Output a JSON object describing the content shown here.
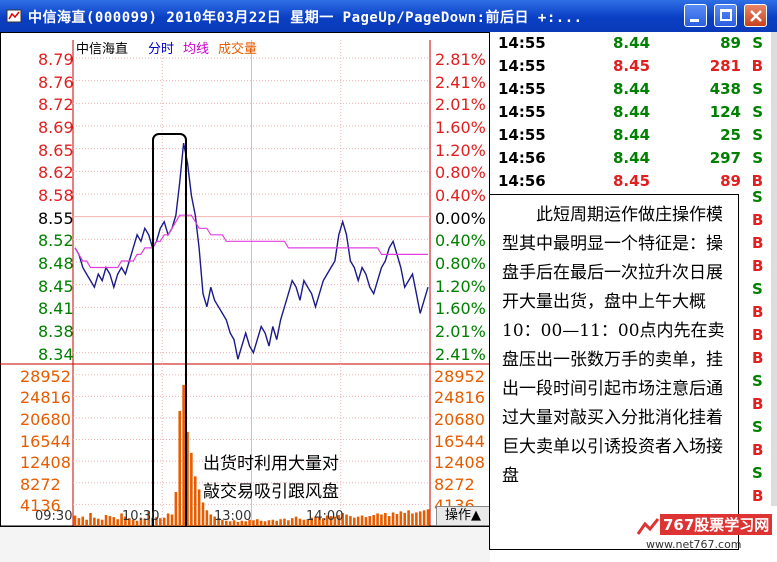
{
  "window": {
    "title": "中信海直(000099) 2010年03月22日 星期一 PageUp/PageDown:前后日 +:...",
    "minimize": "–",
    "maximize": "□",
    "close": "✕"
  },
  "legend": {
    "stock": "中信海直",
    "tab_minute": "分时",
    "tab_avg": "均线",
    "tab_volume": "成交量"
  },
  "colors": {
    "up": "#e02020",
    "down": "#008000",
    "price_line": "#1a1a8a",
    "avg_line": "#e040e0",
    "volume": "#e65c00"
  },
  "axes": {
    "price_ticks": [
      "8.79",
      "8.76",
      "8.72",
      "8.69",
      "8.65",
      "8.62",
      "8.58",
      "8.55",
      "8.52",
      "8.48",
      "8.45",
      "8.41",
      "8.38",
      "8.34"
    ],
    "pct_ticks": [
      "2.81%",
      "2.41%",
      "2.01%",
      "1.60%",
      "1.20%",
      "0.80%",
      "0.40%",
      "0.00%",
      "0.40%",
      "0.80%",
      "1.20%",
      "1.60%",
      "2.01%",
      "2.41%"
    ],
    "volume_ticks": [
      "28952",
      "24816",
      "20680",
      "16544",
      "12408",
      "8272",
      "4136"
    ],
    "time_ticks": [
      "09:30",
      "10:30",
      "13:00",
      "14:00"
    ]
  },
  "chart_data": {
    "type": "line",
    "title": "",
    "xlabel": "",
    "ylabel": "",
    "ylim": [
      8.34,
      8.79
    ],
    "series": [
      {
        "values": [
          8.5,
          8.49,
          8.47,
          8.46,
          8.45,
          8.44,
          8.46,
          8.45,
          8.47,
          8.46,
          8.44,
          8.46,
          8.47,
          8.46,
          8.48,
          8.5,
          8.52,
          8.51,
          8.53,
          8.52,
          8.5,
          8.51,
          8.53,
          8.54,
          8.52,
          8.53,
          8.55,
          8.6,
          8.66,
          8.63,
          8.58,
          8.55,
          8.5,
          8.43,
          8.41,
          8.44,
          8.42,
          8.41,
          8.4,
          8.39,
          8.37,
          8.36,
          8.33,
          8.35,
          8.37,
          8.35,
          8.34,
          8.36,
          8.38,
          8.37,
          8.35,
          8.38,
          8.36,
          8.39,
          8.41,
          8.43,
          8.45,
          8.44,
          8.42,
          8.45,
          8.44,
          8.43,
          8.41,
          8.43,
          8.45,
          8.46,
          8.47,
          8.48,
          8.52,
          8.54,
          8.52,
          8.48,
          8.47,
          8.45,
          8.47,
          8.46,
          8.44,
          8.43,
          8.45,
          8.47,
          8.48,
          8.5,
          8.51,
          8.49,
          8.47,
          8.44,
          8.45,
          8.46,
          8.43,
          8.4,
          8.42,
          8.44
        ]
      },
      {
        "values": [
          8.5,
          8.49,
          8.48,
          8.48,
          8.47,
          8.47,
          8.47,
          8.47,
          8.47,
          8.47,
          8.47,
          8.47,
          8.48,
          8.48,
          8.48,
          8.48,
          8.49,
          8.49,
          8.5,
          8.5,
          8.5,
          8.51,
          8.51,
          8.52,
          8.52,
          8.53,
          8.54,
          8.55,
          8.55,
          8.55,
          8.55,
          8.54,
          8.53,
          8.53,
          8.53,
          8.52,
          8.52,
          8.52,
          8.52,
          8.51,
          8.51,
          8.51,
          8.51,
          8.51,
          8.51,
          8.51,
          8.51,
          8.51,
          8.51,
          8.51,
          8.51,
          8.51,
          8.51,
          8.51,
          8.51,
          8.5,
          8.5,
          8.5,
          8.5,
          8.5,
          8.5,
          8.5,
          8.5,
          8.5,
          8.5,
          8.5,
          8.5,
          8.5,
          8.5,
          8.5,
          8.5,
          8.5,
          8.5,
          8.5,
          8.5,
          8.5,
          8.5,
          8.5,
          8.5,
          8.49,
          8.49,
          8.49,
          8.49,
          8.49,
          8.49,
          8.49,
          8.49,
          8.49,
          8.49,
          8.49,
          8.49,
          8.49
        ]
      }
    ],
    "volume_values": [
      2000,
      1500,
      1800,
      1200,
      2500,
      1600,
      1400,
      1200,
      2100,
      1900,
      1700,
      1300,
      2400,
      1800,
      1500,
      1200,
      1000,
      1600,
      1400,
      2800,
      1600,
      1700,
      1500,
      1600,
      2400,
      2200,
      6500,
      22000,
      27000,
      18000,
      14000,
      9500,
      7000,
      4500,
      3000,
      2200,
      1800,
      1500,
      1200,
      1000,
      900,
      1100,
      800,
      1000,
      900,
      1200,
      1100,
      1300,
      1000,
      900,
      1100,
      1200,
      1000,
      1300,
      1400,
      1100,
      1500,
      1800,
      1400,
      1200,
      1300,
      1600,
      1800,
      1700,
      1500,
      2000,
      1900,
      1800,
      2100,
      2500,
      2200,
      1900,
      1600,
      1800,
      2000,
      1700,
      1900,
      2100,
      2400,
      2200,
      2500,
      1900,
      2600,
      2300,
      2800,
      2500,
      3000,
      2400,
      2600,
      2800,
      3000,
      3200
    ]
  },
  "annotations": {
    "left_box_text": "出货时利用大量对\n敲交易吸引跟风盘",
    "explanation": "此短周期运作做庄操作模型其中最明显一个特征是：操盘手后在最后一次拉升次日展开大量出货，盘中上午大概10：00—11：00点内先在卖盘压出一张数万手的卖单，挂出一段时间引起市场注意后通过大量对敲买入分批消化挂着巨大卖单以引诱投资者入场接盘"
  },
  "trades": [
    {
      "time": "14:55",
      "price": "8.44",
      "volume": "89",
      "side": "S"
    },
    {
      "time": "14:55",
      "price": "8.45",
      "volume": "281",
      "side": "B"
    },
    {
      "time": "14:55",
      "price": "8.44",
      "volume": "438",
      "side": "S"
    },
    {
      "time": "14:55",
      "price": "8.44",
      "volume": "124",
      "side": "S"
    },
    {
      "time": "14:55",
      "price": "8.44",
      "volume": "25",
      "side": "S"
    },
    {
      "time": "14:56",
      "price": "8.44",
      "volume": "297",
      "side": "S"
    },
    {
      "time": "14:56",
      "price": "8.45",
      "volume": "89",
      "side": "B"
    }
  ],
  "bs_column": [
    "S",
    "B",
    "B",
    "B",
    "S",
    "B",
    "B",
    "B",
    "S",
    "B",
    "S",
    "B",
    "S",
    "B"
  ],
  "operate_button": "操作▲",
  "watermark": {
    "title": "767股票学习网",
    "url": "www.net767.com"
  }
}
